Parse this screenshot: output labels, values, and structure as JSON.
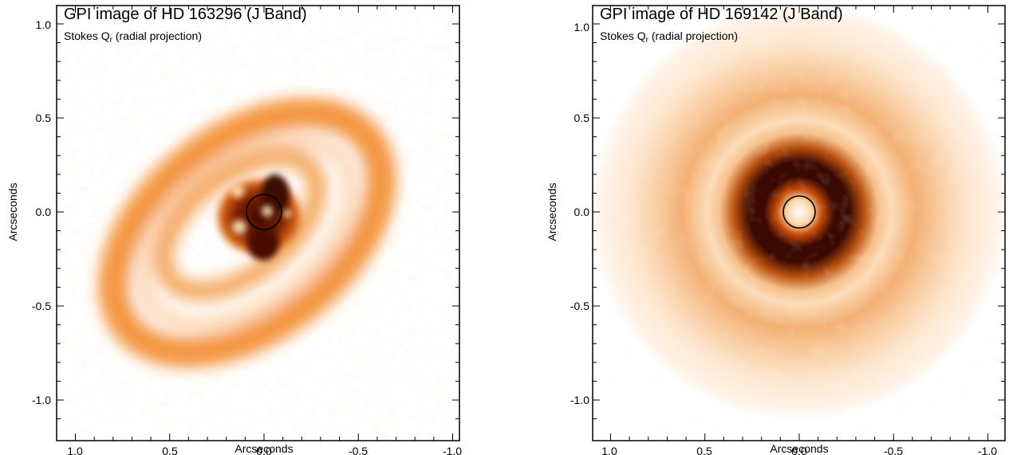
{
  "panels": [
    {
      "id": "left",
      "title": "GPI image of HD 163296 (J Band)",
      "subtitle_main": "Stokes Q",
      "subtitle_sub": "r",
      "subtitle_rest": " (radial projection)",
      "xlabel": "Arcseconds",
      "ylabel": "Arcseconds",
      "xlim": [
        1.1,
        -1.1
      ],
      "ylim": [
        -1.1,
        1.1
      ],
      "x_ticks": [
        "1.0",
        "0.5",
        "0.0",
        "-0.5",
        "-1.0"
      ],
      "y_ticks": [
        "1.0",
        "0.5",
        "0.0",
        "-0.5",
        "-1.0"
      ],
      "mask_radius_arcsec": 0.095
    },
    {
      "id": "right",
      "title": "GPI image of HD 169142 (J Band)",
      "subtitle_main": "Stokes Q",
      "subtitle_sub": "r",
      "subtitle_rest": " (radial projection)",
      "xlabel": "Arcseconds",
      "ylabel": "Arcseconds",
      "xlim": [
        1.1,
        -1.1
      ],
      "ylim": [
        -1.1,
        1.1
      ],
      "x_ticks": [
        "1.0",
        "0.5",
        "0.0",
        "-0.5",
        "-1.0"
      ],
      "y_ticks": [
        "1.0",
        "0.5",
        "0.0",
        "-0.5",
        "-1.0"
      ],
      "mask_radius_arcsec": 0.095
    }
  ],
  "colors": {
    "cmap_light": "#fde3c4",
    "cmap_mid": "#f08a2a",
    "cmap_dark": "#3a0a02",
    "axis": "#000000"
  }
}
